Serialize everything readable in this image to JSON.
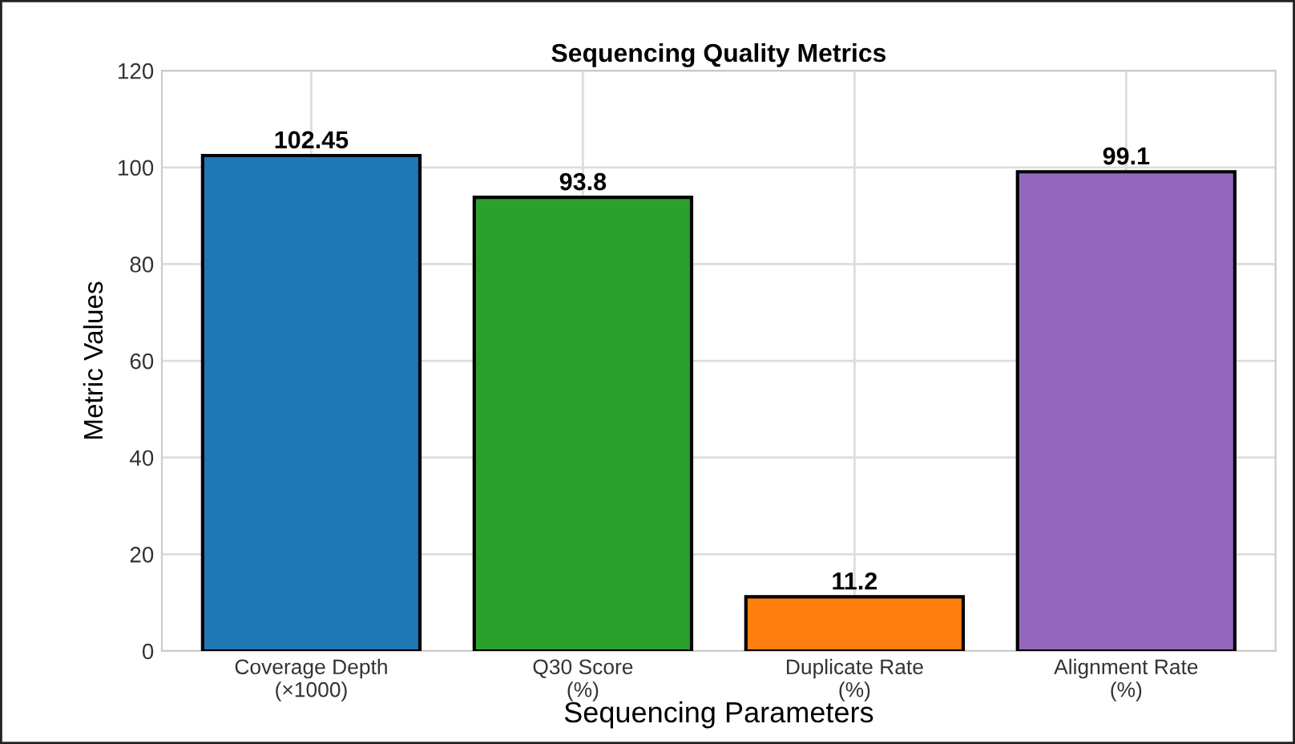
{
  "chart_data": {
    "type": "bar",
    "title": "Sequencing Quality Metrics",
    "xlabel": "Sequencing Parameters",
    "ylabel": "Metric Values",
    "categories": [
      "Coverage Depth\n(×1000)",
      "Q30 Score\n(%)",
      "Duplicate Rate\n(%)",
      "Alignment Rate\n(%)"
    ],
    "values": [
      102.45,
      93.8,
      11.2,
      99.1
    ],
    "colors": [
      "#1f77b4",
      "#2ca02c",
      "#ff7f0e",
      "#9467bd"
    ],
    "ylim": [
      0,
      120
    ],
    "yticks": [
      0,
      20,
      40,
      60,
      80,
      100,
      120
    ],
    "grid": true,
    "data_labels": true
  }
}
